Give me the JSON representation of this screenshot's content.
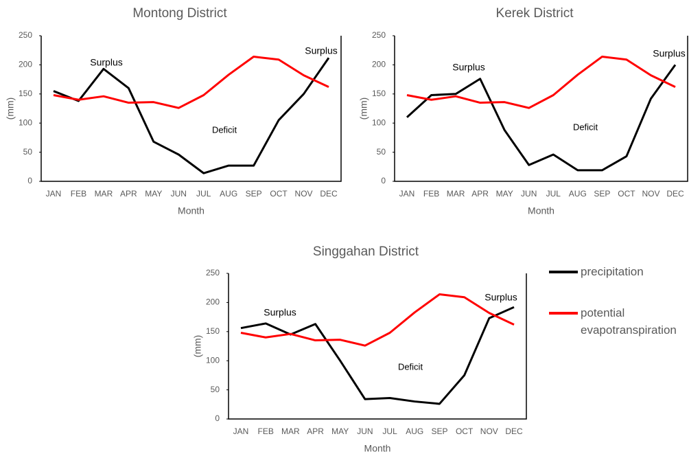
{
  "chart_data": [
    {
      "type": "line",
      "title": "Montong District",
      "x_label": "Month",
      "y_label": "(mm)",
      "categories": [
        "JAN",
        "FEB",
        "MAR",
        "APR",
        "MAY",
        "JUN",
        "JUL",
        "AUG",
        "SEP",
        "OCT",
        "NOV",
        "DEC"
      ],
      "ylim": [
        0,
        250
      ],
      "yticks": [
        0,
        50,
        100,
        150,
        200,
        250
      ],
      "series": [
        {
          "color": "#000000",
          "values": [
            155,
            138,
            193,
            160,
            68,
            46,
            14,
            27,
            27,
            105,
            150,
            212
          ]
        },
        {
          "color": "#ff0000",
          "values": [
            148,
            140,
            146,
            135,
            136,
            126,
            148,
            183,
            214,
            209,
            182,
            162
          ]
        }
      ],
      "annotations": [
        "Surplus",
        "Surplus",
        "Deficit"
      ]
    },
    {
      "type": "line",
      "title": "Kerek District",
      "x_label": "Month",
      "y_label": "(mm)",
      "categories": [
        "JAN",
        "FEB",
        "MAR",
        "APR",
        "MAY",
        "JUN",
        "JUL",
        "AUG",
        "SEP",
        "OCT",
        "NOV",
        "DEC"
      ],
      "ylim": [
        0,
        250
      ],
      "yticks": [
        0,
        50,
        100,
        150,
        200,
        250
      ],
      "series": [
        {
          "color": "#000000",
          "values": [
            110,
            148,
            150,
            176,
            88,
            28,
            46,
            19,
            19,
            43,
            142,
            200
          ]
        },
        {
          "color": "#ff0000",
          "values": [
            148,
            140,
            146,
            135,
            136,
            126,
            148,
            183,
            214,
            209,
            182,
            162
          ]
        }
      ],
      "annotations": [
        "Surplus",
        "Surplus",
        "Deficit"
      ]
    },
    {
      "type": "line",
      "title": "Singgahan District",
      "x_label": "Month",
      "y_label": "(mm)",
      "categories": [
        "JAN",
        "FEB",
        "MAR",
        "APR",
        "MAY",
        "JUN",
        "JUL",
        "AUG",
        "SEP",
        "OCT",
        "NOV",
        "DEC"
      ],
      "ylim": [
        0,
        250
      ],
      "yticks": [
        0,
        50,
        100,
        150,
        200,
        250
      ],
      "series": [
        {
          "name": "precipitation",
          "color": "#000000",
          "values": [
            156,
            164,
            145,
            163,
            100,
            34,
            36,
            30,
            26,
            75,
            173,
            192
          ]
        },
        {
          "name": "potential evapotranspiration",
          "color": "#ff0000",
          "values": [
            148,
            140,
            146,
            135,
            136,
            126,
            148,
            183,
            214,
            209,
            182,
            162
          ]
        }
      ],
      "annotations": [
        "Surplus",
        "Surplus",
        "Deficit"
      ]
    }
  ]
}
